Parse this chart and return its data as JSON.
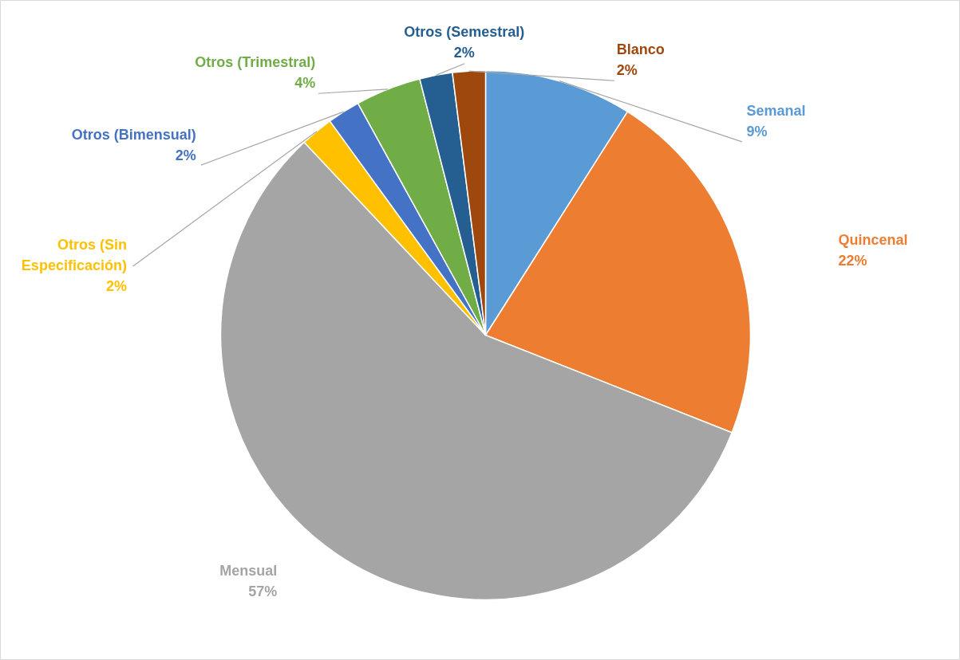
{
  "chart_data": {
    "type": "pie",
    "categories": [
      "Semanal",
      "Quincenal",
      "Mensual",
      "Otros (Sin Especificación)",
      "Otros (Bimensual)",
      "Otros (Trimestral)",
      "Otros (Semestral)",
      "Blanco"
    ],
    "values": [
      9,
      22,
      57,
      2,
      2,
      4,
      2,
      2
    ],
    "value_labels": [
      "9%",
      "22%",
      "57%",
      "2%",
      "2%",
      "4%",
      "2%",
      "2%"
    ],
    "colors": [
      "#5b9bd5",
      "#ed7d31",
      "#a5a5a5",
      "#ffc000",
      "#4472c4",
      "#70ad47",
      "#255e91",
      "#9e480e"
    ],
    "legend": false
  }
}
